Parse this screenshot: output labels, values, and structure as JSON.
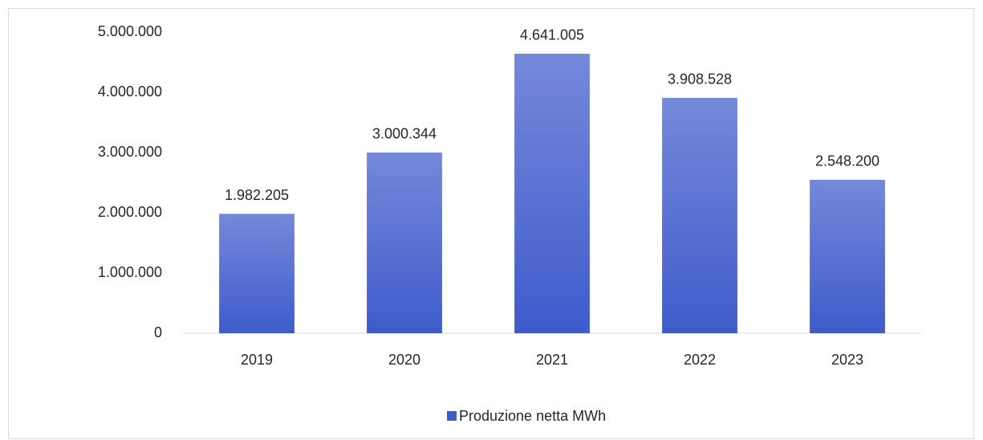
{
  "chart_data": {
    "type": "bar",
    "categories": [
      "2019",
      "2020",
      "2021",
      "2022",
      "2023"
    ],
    "series": [
      {
        "name": "Produzione netta MWh",
        "color": "#3f5bcb",
        "values": [
          1982205,
          3000344,
          4641005,
          3908528,
          2548200
        ],
        "value_labels": [
          "1.982.205",
          "3.000.344",
          "4.641.005",
          "3.908.528",
          "2.548.200"
        ]
      }
    ],
    "ylim": [
      0,
      5000000
    ],
    "yticks": [
      0,
      {
        "value": 1000000,
        "label": "1.000.000"
      },
      {
        "value": 2000000,
        "label": "2.000.000"
      },
      {
        "value": 3000000,
        "label": "3.000.000"
      },
      {
        "value": 4000000,
        "label": "4.000.000"
      },
      {
        "value": 5000000,
        "label": "5.000.000"
      }
    ],
    "grid": false,
    "legend": "bottom"
  }
}
